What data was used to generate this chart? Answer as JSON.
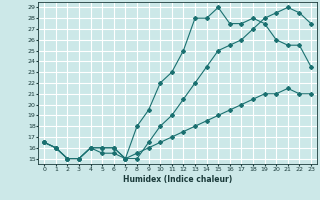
{
  "title": "",
  "xlabel": "Humidex (Indice chaleur)",
  "bg_color": "#cce8e8",
  "grid_color": "#ffffff",
  "line_color": "#1a7070",
  "xlim": [
    -0.5,
    23.5
  ],
  "ylim": [
    14.5,
    29.5
  ],
  "xticks": [
    0,
    1,
    2,
    3,
    4,
    5,
    6,
    7,
    8,
    9,
    10,
    11,
    12,
    13,
    14,
    15,
    16,
    17,
    18,
    19,
    20,
    21,
    22,
    23
  ],
  "yticks": [
    15,
    16,
    17,
    18,
    19,
    20,
    21,
    22,
    23,
    24,
    25,
    26,
    27,
    28,
    29
  ],
  "line1_x": [
    0,
    1,
    2,
    3,
    4,
    5,
    6,
    7,
    8,
    9,
    10,
    11,
    12,
    13,
    14,
    15,
    16,
    17,
    18,
    19,
    20,
    21,
    22,
    23
  ],
  "line1_y": [
    16.5,
    16.0,
    15.0,
    15.0,
    16.0,
    16.0,
    16.0,
    15.0,
    15.0,
    16.5,
    18.0,
    19.0,
    20.5,
    22.0,
    23.5,
    25.0,
    25.5,
    26.0,
    27.0,
    28.0,
    28.5,
    29.0,
    28.5,
    27.5
  ],
  "line2_x": [
    0,
    1,
    2,
    3,
    4,
    5,
    6,
    7,
    8,
    9,
    10,
    11,
    12,
    13,
    14,
    15,
    16,
    17,
    18,
    19,
    20,
    21,
    22,
    23
  ],
  "line2_y": [
    16.5,
    16.0,
    15.0,
    15.0,
    16.0,
    16.0,
    16.0,
    15.0,
    18.0,
    19.5,
    22.0,
    23.0,
    25.0,
    28.0,
    28.0,
    29.0,
    27.5,
    27.5,
    28.0,
    27.5,
    26.0,
    25.5,
    25.5,
    23.5
  ],
  "line3_x": [
    0,
    1,
    2,
    3,
    4,
    5,
    6,
    7,
    8,
    9,
    10,
    11,
    12,
    13,
    14,
    15,
    16,
    17,
    18,
    19,
    20,
    21,
    22,
    23
  ],
  "line3_y": [
    16.5,
    16.0,
    15.0,
    15.0,
    16.0,
    15.5,
    15.5,
    15.0,
    15.5,
    16.0,
    16.5,
    17.0,
    17.5,
    18.0,
    18.5,
    19.0,
    19.5,
    20.0,
    20.5,
    21.0,
    21.0,
    21.5,
    21.0,
    21.0
  ]
}
